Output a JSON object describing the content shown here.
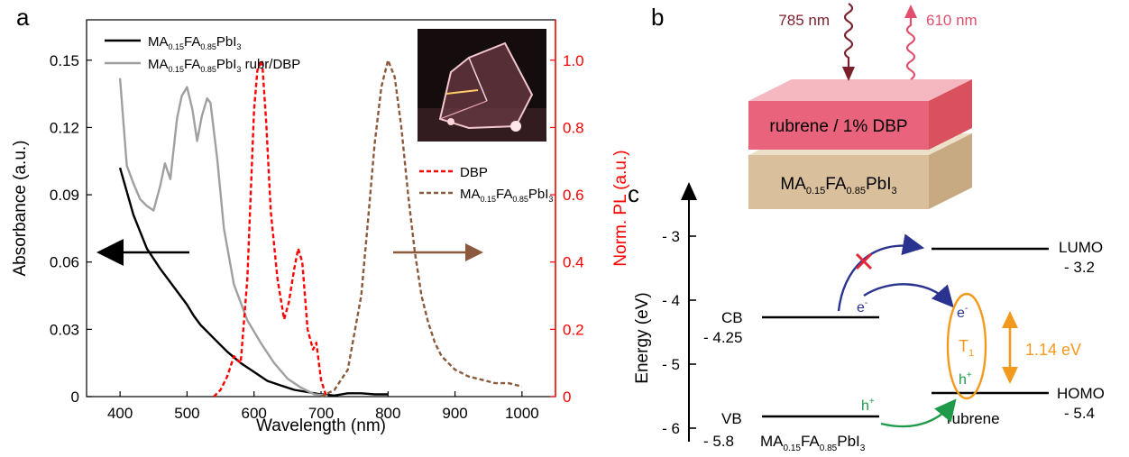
{
  "panel_a": {
    "label": "a",
    "legend_left": {
      "absorbance": {
        "base": "MA",
        "s1": "0.15",
        "mid": "FA",
        "s2": "0.85",
        "tail": "PbI",
        "s3": "3"
      },
      "absorbance_rubr": {
        "base": "MA",
        "s1": "0.15",
        "mid": "FA",
        "s2": "0.85",
        "tail": "PbI",
        "s3": "3",
        "suffix": " rubr/DBP"
      }
    },
    "legend_right": {
      "dbp": "DBP",
      "perov": {
        "base": "MA",
        "s1": "0.15",
        "mid": "FA",
        "s2": "0.85",
        "tail": "PbI",
        "s3": "3"
      }
    }
  },
  "panel_b": {
    "label": "b",
    "layer_top": "rubrene / 1% DBP",
    "layer_bottom": {
      "base": "MA",
      "s1": "0.15",
      "mid": "FA",
      "s2": "0.85",
      "tail": "PbI",
      "s3": "3"
    },
    "excitation": "785 nm",
    "emission": "610 nm",
    "colors": {
      "top_layer": "#e8637b",
      "top_layer_top": "#f6b8c0",
      "bottom_layer": "#d9bf9c",
      "excitation": "#7a1f2b",
      "emission": "#e0506e"
    }
  },
  "panel_c": {
    "label": "c",
    "ylabel": "Energy (eV)",
    "ticks": [
      "- 3",
      "- 4",
      "- 5",
      "- 6"
    ],
    "levels": {
      "lumo": {
        "name": "LUMO",
        "value": "- 3.2"
      },
      "homo": {
        "name": "HOMO",
        "value": "- 5.4"
      },
      "cb": {
        "name": "CB",
        "value": "- 4.25"
      },
      "vb": {
        "name": "VB",
        "value": "- 5.8"
      }
    },
    "electron": "e",
    "electron_sup": "-",
    "hole": "h",
    "hole_sup": "+",
    "triplet": "T",
    "triplet_sub": "1",
    "gap": "1.14 eV",
    "rubrene": "rubrene",
    "perov": {
      "base": "MA",
      "s1": "0.15",
      "mid": "FA",
      "s2": "0.85",
      "tail": "PbI",
      "s3": "3"
    },
    "colors": {
      "electron": "#2b3390",
      "hole": "#1f9a4a",
      "triplet": "#f39a1e",
      "blocked": "#e0283a"
    }
  },
  "chart_data": {
    "type": "line",
    "xlabel": "Wavelength (nm)",
    "ylabel": "Absorbance (a.u.)",
    "y2label": "Norm. PL (a.u.)",
    "xlim": [
      350,
      1050
    ],
    "ylim": [
      0,
      0.168
    ],
    "y2lim": [
      0,
      1.12
    ],
    "xticks": [
      400,
      500,
      600,
      700,
      800,
      900,
      1000
    ],
    "yticks": [
      0,
      0.03,
      0.06,
      0.09,
      0.12,
      0.15
    ],
    "ytick_labels": [
      "0",
      "0.03",
      "0.06",
      "0.09",
      "0.12",
      "0.15"
    ],
    "y2ticks": [
      0,
      0.2,
      0.4,
      0.6,
      0.8,
      1.0
    ],
    "y2tick_labels": [
      "0",
      "0.2",
      "0.4",
      "0.6",
      "0.8",
      "1.0"
    ],
    "series": [
      {
        "name": "MA0.15FA0.85PbI3",
        "axis": "left",
        "color": "#000000",
        "style": "solid",
        "x": [
          400,
          420,
          440,
          460,
          480,
          500,
          510,
          520,
          540,
          560,
          580,
          600,
          620,
          640,
          660,
          680,
          700,
          720,
          740,
          760,
          780,
          800
        ],
        "y": [
          0.102,
          0.081,
          0.066,
          0.057,
          0.049,
          0.041,
          0.036,
          0.032,
          0.026,
          0.02,
          0.015,
          0.011,
          0.007,
          0.005,
          0.003,
          0.002,
          0.001,
          0.0005,
          0.0015,
          0.0015,
          0.001,
          0.001
        ]
      },
      {
        "name": "MA0.15FA0.85PbI3 rubr/DBP",
        "axis": "left",
        "color": "#a0a0a0",
        "style": "solid",
        "x": [
          400,
          410,
          420,
          430,
          440,
          450,
          460,
          467,
          475,
          485,
          492,
          500,
          508,
          515,
          522,
          530,
          535,
          545,
          555,
          570,
          590,
          610,
          630,
          650,
          670,
          690,
          710
        ],
        "y": [
          0.142,
          0.103,
          0.095,
          0.088,
          0.085,
          0.083,
          0.094,
          0.104,
          0.097,
          0.124,
          0.134,
          0.138,
          0.128,
          0.114,
          0.125,
          0.133,
          0.131,
          0.106,
          0.075,
          0.05,
          0.034,
          0.024,
          0.015,
          0.008,
          0.004,
          0.001,
          0.0005
        ]
      },
      {
        "name": "DBP",
        "axis": "right",
        "color": "#ff0000",
        "style": "dashed",
        "x": [
          540,
          550,
          560,
          570,
          580,
          590,
          600,
          605,
          612,
          618,
          625,
          635,
          645,
          652,
          660,
          666,
          672,
          680,
          688,
          693,
          700,
          708
        ],
        "y": [
          0.0,
          0.02,
          0.06,
          0.12,
          0.1,
          0.35,
          0.85,
          0.97,
          1.0,
          0.82,
          0.55,
          0.35,
          0.23,
          0.28,
          0.38,
          0.44,
          0.4,
          0.2,
          0.14,
          0.16,
          0.05,
          0.0
        ]
      },
      {
        "name": "MA0.15FA0.85PbI3",
        "axis": "right",
        "color": "#8b5a3c",
        "style": "dashed",
        "x": [
          700,
          720,
          740,
          760,
          770,
          780,
          790,
          800,
          810,
          820,
          830,
          840,
          850,
          860,
          870,
          880,
          890,
          900,
          920,
          940,
          960,
          980,
          1000
        ],
        "y": [
          0.0,
          0.02,
          0.08,
          0.3,
          0.52,
          0.75,
          0.92,
          1.0,
          0.95,
          0.8,
          0.6,
          0.43,
          0.3,
          0.22,
          0.16,
          0.12,
          0.1,
          0.08,
          0.06,
          0.05,
          0.04,
          0.04,
          0.03
        ]
      }
    ]
  }
}
